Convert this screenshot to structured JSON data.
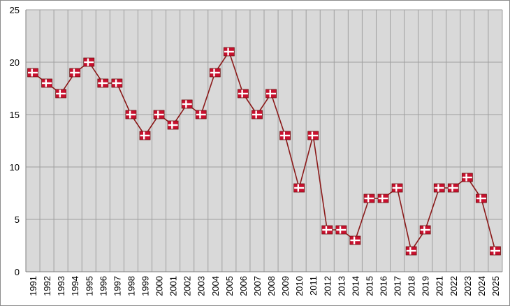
{
  "chart_data": {
    "type": "line",
    "title": "",
    "xlabel": "",
    "ylabel": "",
    "ylim": [
      0,
      25
    ],
    "yticks": [
      0,
      5,
      10,
      15,
      20,
      25
    ],
    "grid": "vertical-and-horizontal",
    "legend": "none",
    "categories": [
      "1991",
      "1992",
      "1993",
      "1994",
      "1995",
      "1996",
      "1997",
      "1998",
      "1999",
      "2000",
      "2001",
      "2002",
      "2003",
      "2004",
      "2005",
      "2006",
      "2007",
      "2008",
      "2009",
      "2010",
      "2011",
      "2012",
      "2013",
      "2014",
      "2015",
      "2016",
      "2017",
      "2018",
      "2019",
      "2021",
      "2022",
      "2023",
      "2024",
      "2025"
    ],
    "series": [
      {
        "values": [
          19,
          18,
          17,
          19,
          20,
          18,
          18,
          15,
          13,
          15,
          14,
          16,
          15,
          19,
          21,
          17,
          15,
          17,
          13,
          8,
          13,
          4,
          4,
          3,
          7,
          7,
          8,
          2,
          4,
          8,
          8,
          9,
          7,
          2
        ]
      }
    ],
    "colors": {
      "plot_background": "#d9d9d9",
      "gridline": "#9f9f9f",
      "line": "#8b1a1a",
      "marker": "#c8102e",
      "marker_cross": "#ffffff"
    },
    "marker": "danish-flag-icon"
  }
}
